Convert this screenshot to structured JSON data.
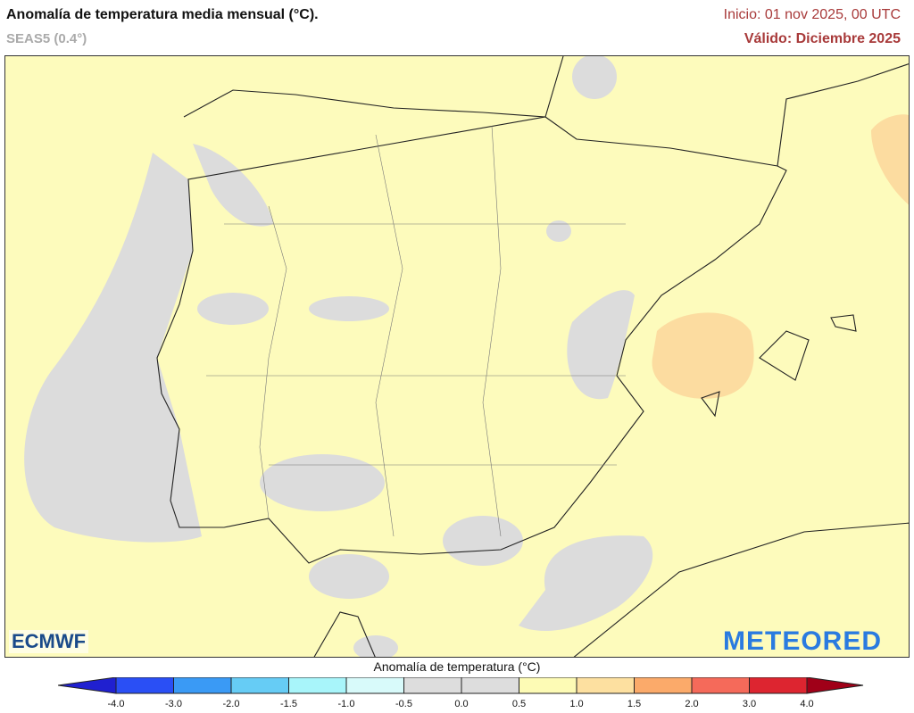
{
  "header": {
    "title": "Anomalía de temperatura media mensual (°C).",
    "model": "SEAS5 (0.4°)",
    "init": "Inicio: 01 nov 2025, 00 UTC",
    "valid": "Válido: Diciembre 2025"
  },
  "logos": {
    "left": "ECMWF",
    "right": "METEORED"
  },
  "legend": {
    "title": "Anomalía de temperatura (°C)",
    "ticks": [
      "-4.0",
      "-3.0",
      "-2.0",
      "-1.5",
      "-1.0",
      "-0.5",
      "0.0",
      "0.5",
      "1.0",
      "1.5",
      "2.0",
      "3.0",
      "4.0"
    ],
    "under_color": "#2020d0",
    "over_color": "#a00018",
    "colors": [
      "#2a4ff5",
      "#3a9af5",
      "#66ccf5",
      "#a8f5fa",
      "#d8fafa",
      "#dddddd",
      "#dddddd",
      "#fdfbb5",
      "#fde0a0",
      "#fbaa6a",
      "#f56a5a",
      "#dd2530"
    ]
  },
  "map": {
    "dominant_anomaly": "0.5 to 1.0",
    "colors": {
      "background": "#fdfbbc",
      "neutral": "#dddddd",
      "warm": "#fde0a0"
    }
  }
}
